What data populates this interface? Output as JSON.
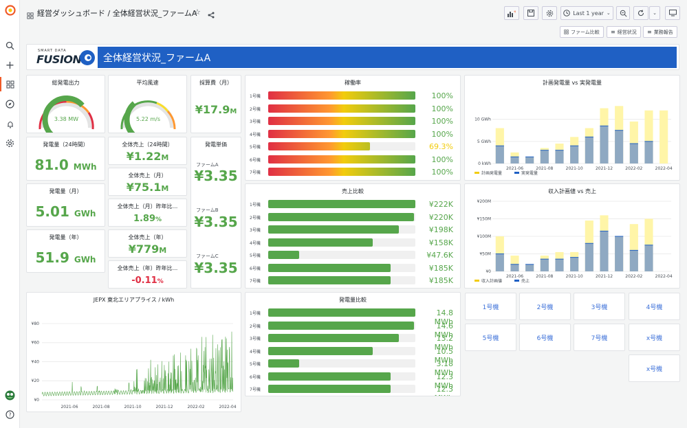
{
  "header": {
    "breadcrumb": "経営ダッシュボード / 全体経営状況_ファームA",
    "time_range": "Last 1 year"
  },
  "links": [
    "ファーム比較",
    "経営状況",
    "業務報告"
  ],
  "banner": {
    "logo_top": "SMART DATA",
    "logo_main": "FUSION",
    "title": "全体経営状況_ファームA"
  },
  "gauges": [
    {
      "title": "総発電出力",
      "value": "3.38 MW",
      "fraction": 0.68
    },
    {
      "title": "平均風速",
      "value": "5.22 m/s",
      "fraction": 0.35
    }
  ],
  "stats": [
    {
      "title": "発電量（24時間）",
      "value": "81.0",
      "unit": "MWh",
      "color": "#56a64b"
    },
    {
      "title": "発電量（月）",
      "value": "5.01",
      "unit": "GWh",
      "color": "#56a64b"
    },
    {
      "title": "発電量（年）",
      "value": "51.9",
      "unit": "GWh",
      "color": "#56a64b"
    }
  ],
  "sales": [
    {
      "title": "全体売上（24時間）",
      "value": "¥1.22",
      "unit": "M",
      "color": "#56a64b"
    },
    {
      "title": "全体売上（月）",
      "value": "¥75.1",
      "unit": "M",
      "color": "#56a64b"
    },
    {
      "title": "全体売上（月）昨年比...",
      "value": "1.89",
      "unit": "%",
      "color": "#56a64b"
    },
    {
      "title": "全体売上（年）",
      "value": "¥779",
      "unit": "M",
      "color": "#56a64b"
    },
    {
      "title": "全体売上（年）昨年比...",
      "value": "-0.11",
      "unit": "%",
      "color": "#e02f44"
    }
  ],
  "maint": {
    "title": "採算費（月）",
    "value": "¥17.9",
    "unit": "M"
  },
  "unit_price": {
    "title": "発電単価",
    "items": [
      {
        "label": "ファームA",
        "value": "¥3.35"
      },
      {
        "label": "ファームB",
        "value": "¥3.35"
      },
      {
        "label": "ファームC",
        "value": "¥3.35"
      }
    ]
  },
  "availability": {
    "title": "稼働率",
    "rows": [
      {
        "label": "1号機",
        "value": "100%",
        "fraction": 1.0
      },
      {
        "label": "2号機",
        "value": "100%",
        "fraction": 1.0
      },
      {
        "label": "3号機",
        "value": "100%",
        "fraction": 1.0
      },
      {
        "label": "4号機",
        "value": "100%",
        "fraction": 1.0
      },
      {
        "label": "5号機",
        "value": "69.3%",
        "fraction": 0.693
      },
      {
        "label": "6号機",
        "value": "100%",
        "fraction": 1.0
      },
      {
        "label": "7号機",
        "value": "100%",
        "fraction": 1.0
      }
    ]
  },
  "sales_compare": {
    "title": "売上比較",
    "rows": [
      {
        "label": "1号機",
        "value": "¥222K",
        "fraction": 1.0
      },
      {
        "label": "2号機",
        "value": "¥220K",
        "fraction": 0.99
      },
      {
        "label": "3号機",
        "value": "¥198K",
        "fraction": 0.89
      },
      {
        "label": "4号機",
        "value": "¥158K",
        "fraction": 0.71
      },
      {
        "label": "5号機",
        "value": "¥47.6K",
        "fraction": 0.21
      },
      {
        "label": "6号機",
        "value": "¥185K",
        "fraction": 0.83
      },
      {
        "label": "7号機",
        "value": "¥185K",
        "fraction": 0.83
      }
    ]
  },
  "gen_compare": {
    "title": "発電量比較",
    "rows": [
      {
        "label": "1号機",
        "value": "14.8 MWh",
        "fraction": 1.0
      },
      {
        "label": "2号機",
        "value": "14.6 MWh",
        "fraction": 0.99
      },
      {
        "label": "3号機",
        "value": "13.2 MWh",
        "fraction": 0.89
      },
      {
        "label": "4号機",
        "value": "10.5 MWh",
        "fraction": 0.71
      },
      {
        "label": "5号機",
        "value": "3.18 MWh",
        "fraction": 0.21
      },
      {
        "label": "6号機",
        "value": "12.3 MWh",
        "fraction": 0.83
      },
      {
        "label": "7号機",
        "value": "12.3 MWh",
        "fraction": 0.83
      }
    ]
  },
  "machines": [
    "1号機",
    "2号機",
    "3号機",
    "4号機",
    "5号機",
    "6号機",
    "7号機",
    "x号機",
    "x号機"
  ],
  "colors": {
    "green": "#56a64b",
    "plan": "#fff5a8",
    "actual": "#8fa9c2",
    "blue": "#3d71d9",
    "banner": "#1f60c4"
  },
  "chart_data": [
    {
      "type": "bar",
      "title": "計画発電量 vs 実発電量",
      "x": [
        "2021-05",
        "2021-06",
        "2021-07",
        "2021-08",
        "2021-09",
        "2021-10",
        "2021-11",
        "2021-12",
        "2022-01",
        "2022-02",
        "2022-03",
        "2022-04"
      ],
      "xticks": [
        "2021-06",
        "2021-08",
        "2021-10",
        "2021-12",
        "2022-02",
        "2022-04"
      ],
      "yticks": [
        "0 kWh",
        "5 GWh",
        "10 GWh"
      ],
      "ylim": [
        0,
        16
      ],
      "series": [
        {
          "name": "計画発電量",
          "values": [
            8,
            2.5,
            1.5,
            3.5,
            4.5,
            6,
            8,
            12.5,
            13,
            9.5,
            12,
            12
          ]
        },
        {
          "name": "実発電量",
          "values": [
            4,
            1.5,
            1.5,
            3,
            3,
            4,
            6,
            8.5,
            7.5,
            4.5,
            5,
            0
          ]
        }
      ],
      "legend": "bottom-left"
    },
    {
      "type": "bar",
      "title": "収入計画値 vs 売上",
      "x": [
        "2021-05",
        "2021-06",
        "2021-07",
        "2021-08",
        "2021-09",
        "2021-10",
        "2021-11",
        "2021-12",
        "2022-01",
        "2022-02",
        "2022-03",
        "2022-04"
      ],
      "xticks": [
        "2021-06",
        "2021-08",
        "2021-10",
        "2021-12",
        "2022-02",
        "2022-04"
      ],
      "yticks": [
        "¥0",
        "¥50M",
        "¥100M",
        "¥150M",
        "¥200M"
      ],
      "ylim": [
        0,
        200
      ],
      "series": [
        {
          "name": "収入計画値",
          "values": [
            100,
            45,
            20,
            45,
            55,
            55,
            145,
            160,
            100,
            135,
            150,
            0
          ]
        },
        {
          "name": "売上",
          "values": [
            50,
            20,
            20,
            35,
            35,
            40,
            80,
            115,
            100,
            60,
            75,
            0
          ]
        }
      ],
      "legend": "bottom-left"
    },
    {
      "type": "line",
      "title": "JEPX 東北エリアプライス / kWh",
      "xticks": [
        "2021-06",
        "2021-08",
        "2021-10",
        "2021-12",
        "2022-02",
        "2022-04"
      ],
      "yticks": [
        "¥0",
        "¥20",
        "¥40",
        "¥60",
        "¥80"
      ],
      "ylim": [
        0,
        85
      ]
    }
  ]
}
